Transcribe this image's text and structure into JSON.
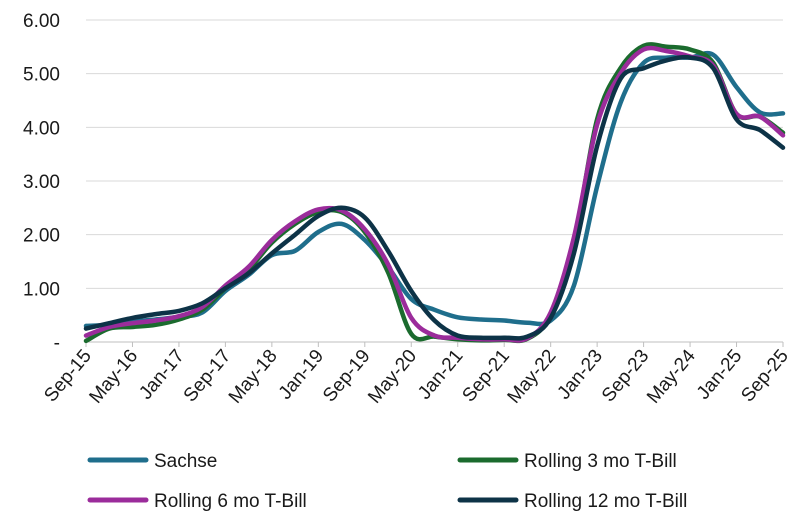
{
  "chart_data": {
    "type": "line",
    "title": "",
    "xlabel": "",
    "ylabel": "",
    "ylim": [
      0,
      6
    ],
    "y_ticks": [
      {
        "value": 0,
        "label": "-"
      },
      {
        "value": 1,
        "label": "1.00"
      },
      {
        "value": 2,
        "label": "2.00"
      },
      {
        "value": 3,
        "label": "3.00"
      },
      {
        "value": 4,
        "label": "4.00"
      },
      {
        "value": 5,
        "label": "5.00"
      },
      {
        "value": 6,
        "label": "6.00"
      }
    ],
    "x": [
      "Sep-15",
      "Jan-16",
      "May-16",
      "Sep-16",
      "Jan-17",
      "May-17",
      "Sep-17",
      "Jan-18",
      "May-18",
      "Sep-18",
      "Jan-19",
      "May-19",
      "Sep-19",
      "Jan-20",
      "May-20",
      "Sep-20",
      "Jan-21",
      "May-21",
      "Sep-21",
      "Jan-22",
      "May-22",
      "Sep-22",
      "Jan-23",
      "May-23",
      "Sep-23",
      "Jan-24",
      "May-24",
      "Sep-24",
      "Jan-25",
      "May-25",
      "Sep-25"
    ],
    "x_tick_labels": [
      "Sep-15",
      "May-16",
      "Jan-17",
      "Sep-17",
      "May-18",
      "Jan-19",
      "Sep-19",
      "May-20",
      "Jan-21",
      "Sep-21",
      "May-22",
      "Jan-23",
      "Sep-23",
      "May-24",
      "Jan-25",
      "Sep-25"
    ],
    "grid": true,
    "legend_position": "bottom",
    "series": [
      {
        "name": "Sachse",
        "color": "#1f6e8c",
        "values": [
          0.3,
          0.32,
          0.38,
          0.42,
          0.47,
          0.55,
          0.95,
          1.25,
          1.62,
          1.7,
          2.05,
          2.2,
          1.9,
          1.4,
          0.8,
          0.6,
          0.46,
          0.42,
          0.4,
          0.36,
          0.4,
          1.05,
          2.9,
          4.45,
          5.2,
          5.3,
          5.3,
          5.35,
          4.75,
          4.28,
          4.26
        ]
      },
      {
        "name": "Rolling 3 mo T-Bill",
        "color": "#1b6b2e",
        "values": [
          0.02,
          0.25,
          0.28,
          0.32,
          0.42,
          0.6,
          1.0,
          1.35,
          1.85,
          2.2,
          2.42,
          2.42,
          2.05,
          1.3,
          0.15,
          0.1,
          0.05,
          0.03,
          0.04,
          0.06,
          0.5,
          1.85,
          4.15,
          5.1,
          5.52,
          5.5,
          5.45,
          5.2,
          4.25,
          4.2,
          3.9
        ]
      },
      {
        "name": "Rolling 6 mo T-Bill",
        "color": "#9b2c9b",
        "values": [
          0.12,
          0.28,
          0.35,
          0.4,
          0.48,
          0.65,
          1.05,
          1.4,
          1.9,
          2.25,
          2.47,
          2.45,
          2.1,
          1.45,
          0.45,
          0.12,
          0.08,
          0.05,
          0.05,
          0.07,
          0.55,
          1.95,
          4.05,
          5.0,
          5.45,
          5.42,
          5.32,
          5.15,
          4.25,
          4.2,
          3.85
        ]
      },
      {
        "name": "Rolling 12 mo T-Bill",
        "color": "#0d3347",
        "values": [
          0.25,
          0.35,
          0.45,
          0.52,
          0.58,
          0.72,
          1.0,
          1.28,
          1.65,
          2.0,
          2.35,
          2.5,
          2.32,
          1.7,
          0.95,
          0.4,
          0.12,
          0.08,
          0.08,
          0.1,
          0.45,
          1.65,
          3.65,
          4.9,
          5.1,
          5.25,
          5.3,
          5.1,
          4.15,
          3.95,
          3.62
        ]
      }
    ]
  }
}
